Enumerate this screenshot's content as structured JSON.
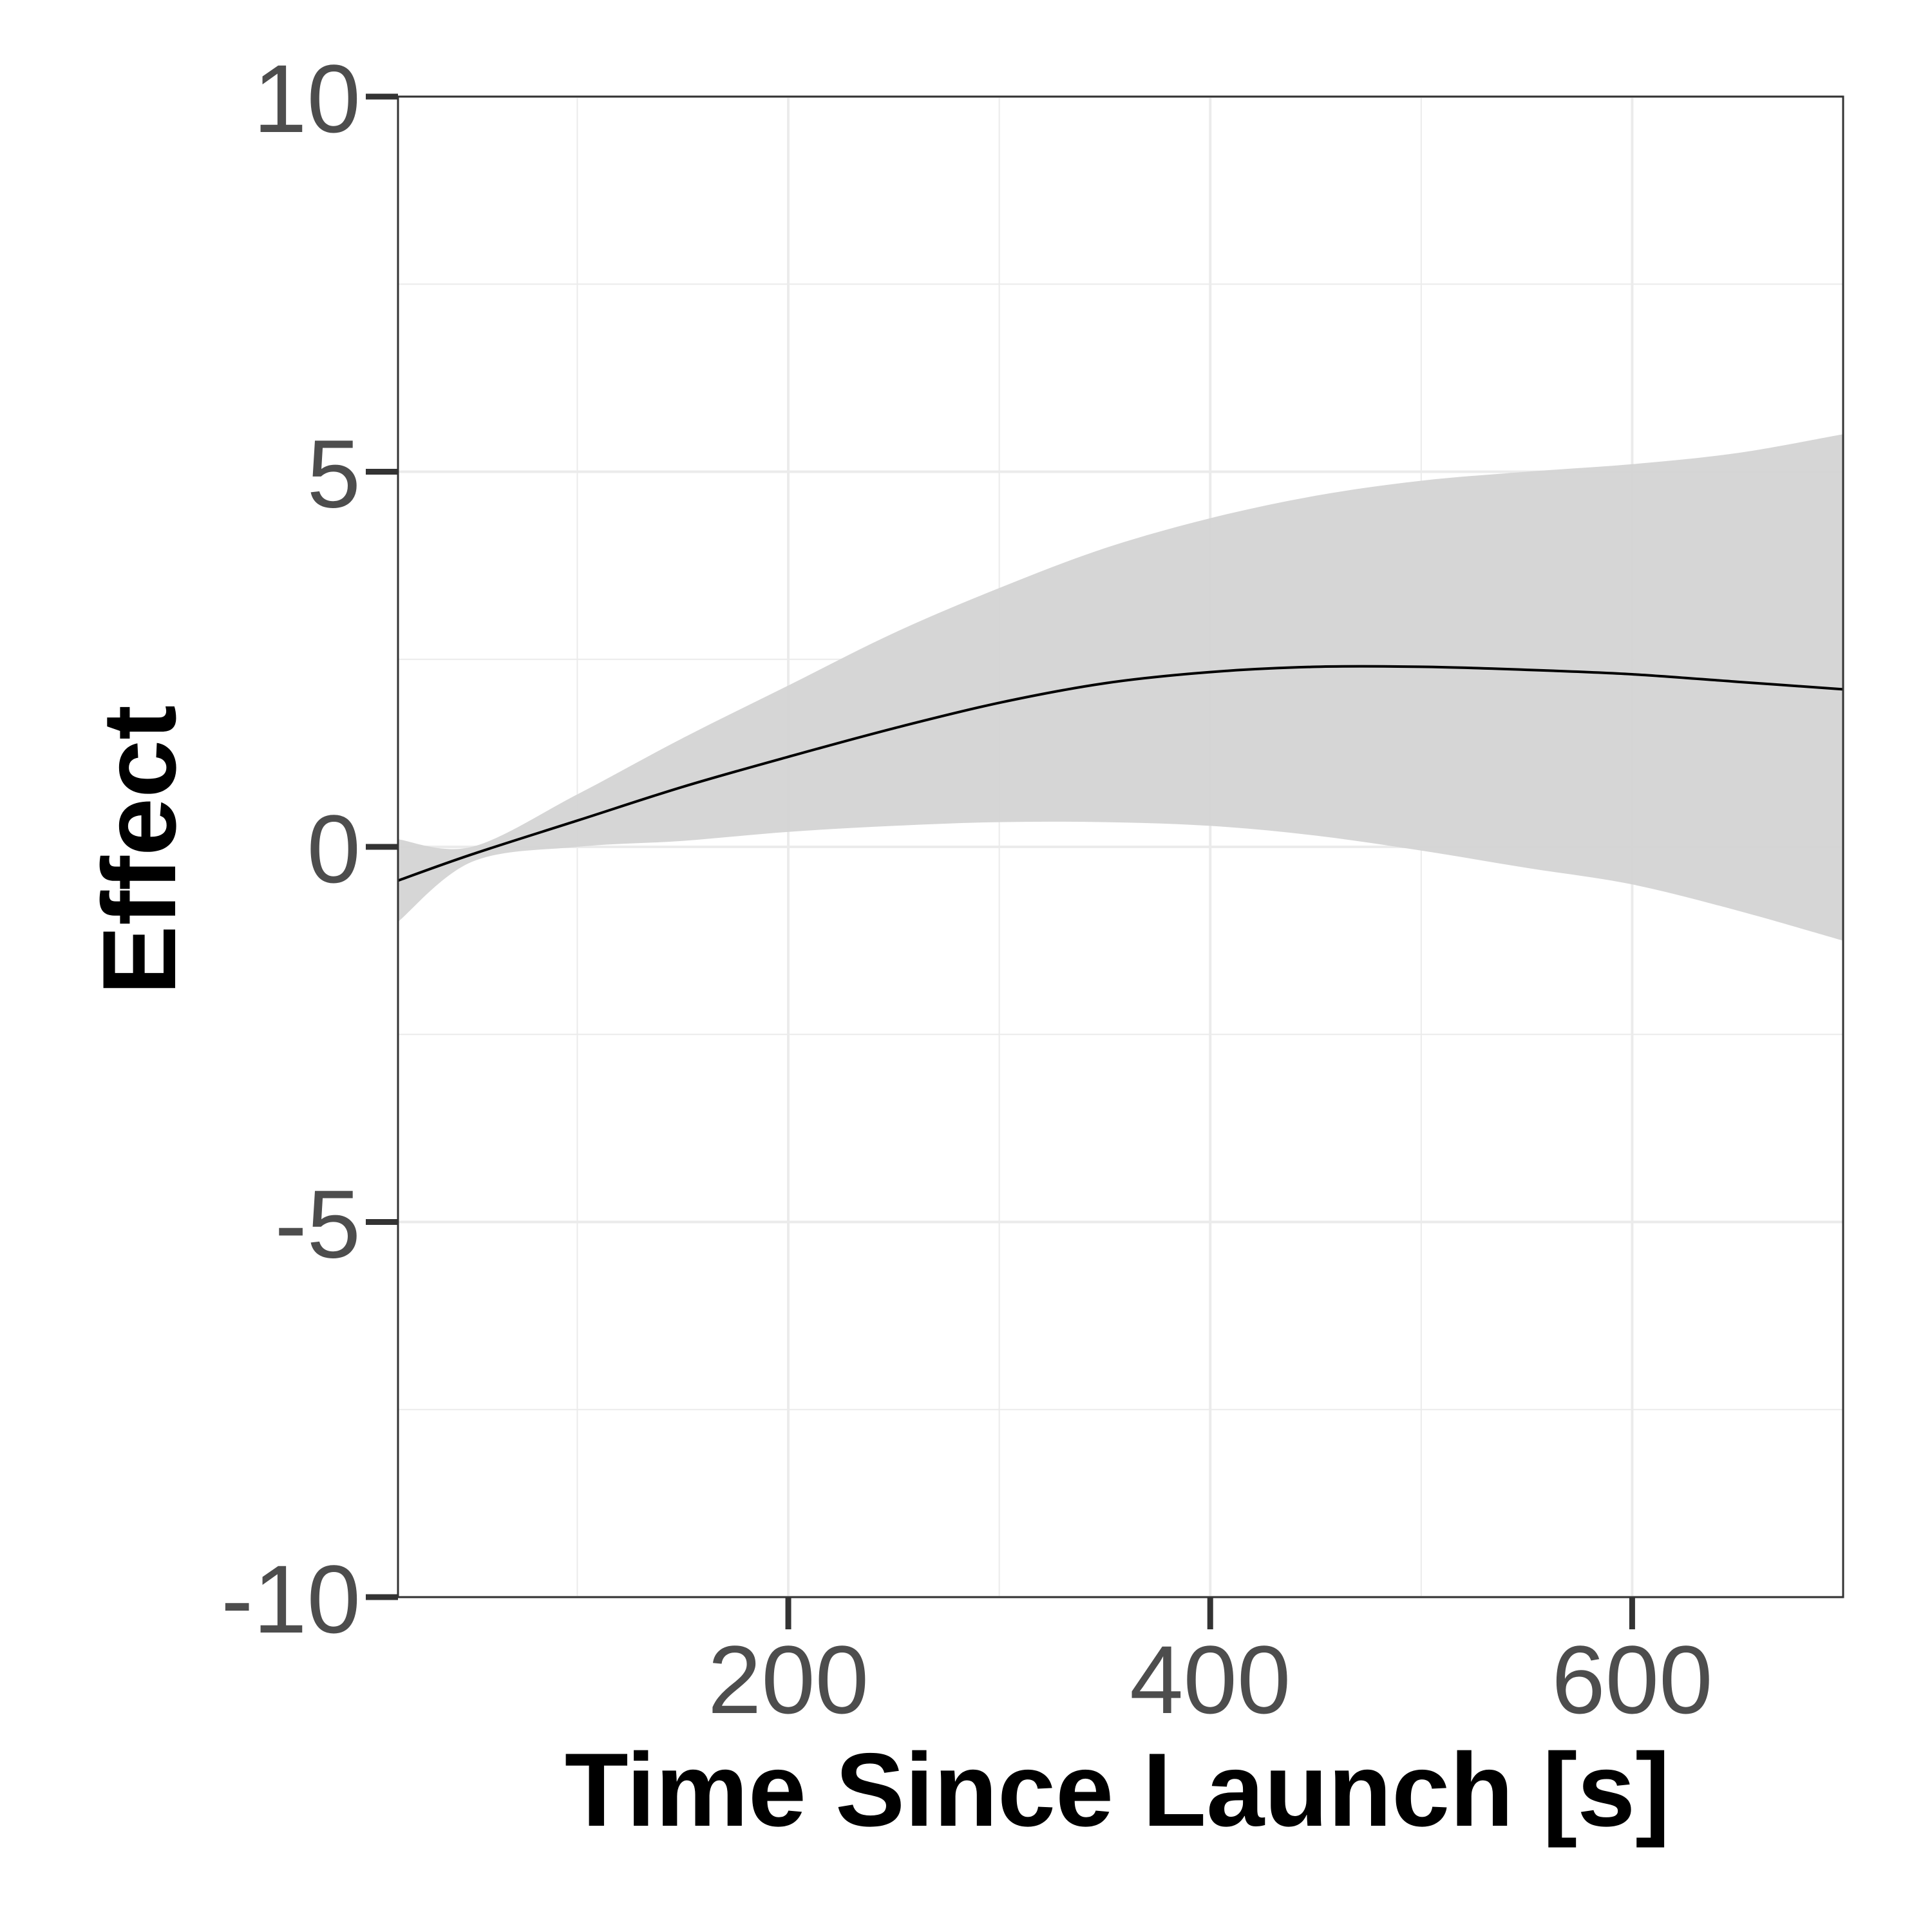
{
  "chart_data": {
    "type": "line",
    "title": "",
    "xlabel": "Time Since Launch [s]",
    "ylabel": "Effect",
    "xlim": [
      15,
      700
    ],
    "ylim": [
      -10,
      10
    ],
    "x_ticks": [
      200,
      400,
      600
    ],
    "x_tick_labels": [
      "200",
      "400",
      "600"
    ],
    "y_ticks": [
      -10,
      -5,
      0,
      5,
      10
    ],
    "y_tick_labels": [
      "-10",
      "-5",
      "0",
      "5",
      "10"
    ],
    "grid": true,
    "legend": "none",
    "colors": {
      "line": "#000000",
      "band": "#d4d4d4",
      "grid": "#ebebeb",
      "border": "#333333"
    },
    "series": [
      {
        "x": [
          15,
          50,
          100,
          150,
          200,
          250,
          300,
          350,
          400,
          450,
          500,
          550,
          600,
          650,
          700
        ],
        "values": [
          -0.45,
          -0.1,
          0.35,
          0.8,
          1.2,
          1.58,
          1.92,
          2.18,
          2.33,
          2.4,
          2.4,
          2.36,
          2.3,
          2.2,
          2.1
        ],
        "lower": [
          -1.0,
          -0.2,
          0.0,
          0.08,
          0.2,
          0.28,
          0.33,
          0.33,
          0.28,
          0.15,
          -0.05,
          -0.28,
          -0.5,
          -0.85,
          -1.25
        ],
        "upper": [
          0.1,
          0.0,
          0.7,
          1.45,
          2.15,
          2.85,
          3.45,
          3.98,
          4.38,
          4.68,
          4.88,
          5.0,
          5.1,
          5.25,
          5.5
        ]
      }
    ]
  }
}
